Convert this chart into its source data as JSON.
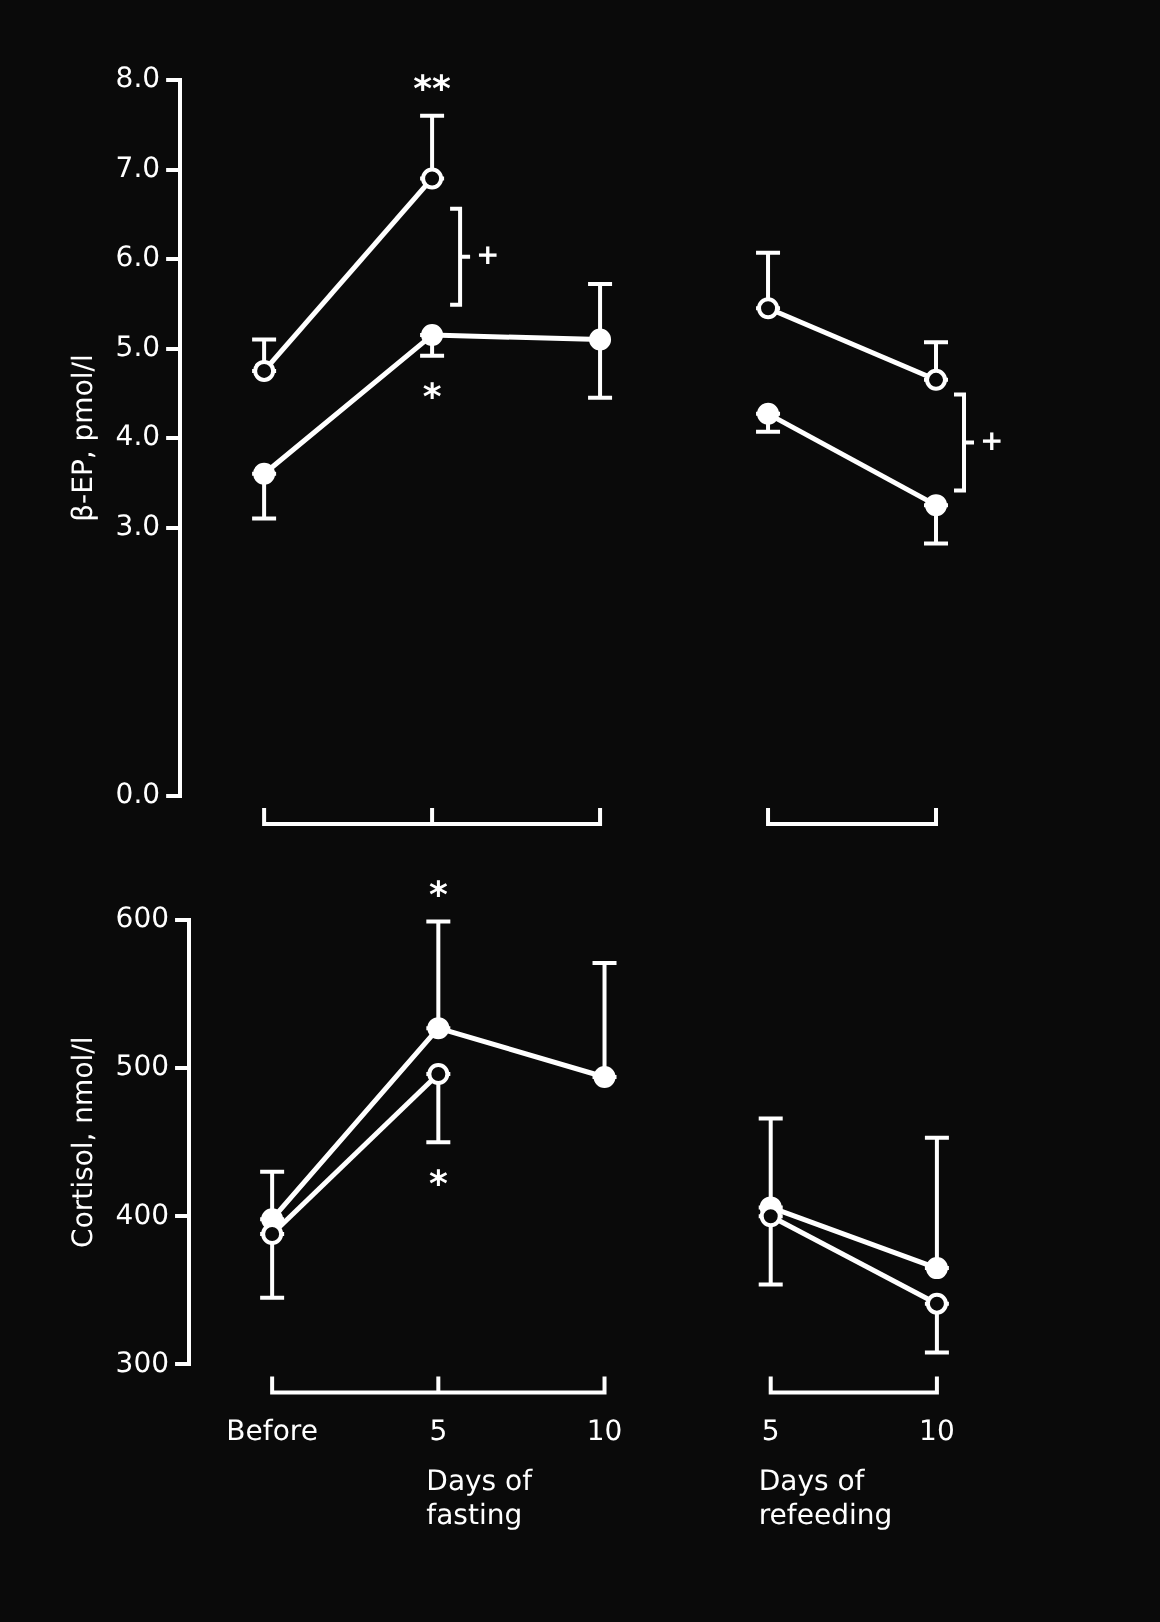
{
  "chart_data": [
    {
      "type": "line",
      "ylabel": "β-EP, pmol/l",
      "categories": [
        null,
        null,
        null,
        null,
        null
      ],
      "ylim": [
        0,
        8
      ],
      "yticks": [
        {
          "value": 0,
          "label": "0.0"
        },
        {
          "value": 3,
          "label": "3.0"
        },
        {
          "value": 4,
          "label": "4.0"
        },
        {
          "value": 5,
          "label": "5.0"
        },
        {
          "value": 6,
          "label": "6.0"
        },
        {
          "value": 7,
          "label": "7.0"
        },
        {
          "value": 8,
          "label": "8.0"
        }
      ],
      "tick_labels": "y",
      "grid": false,
      "legend": false,
      "marker": "circle",
      "series": [
        {
          "color": "#ffffff",
          "values": [
            4.75,
            6.9,
            null,
            null,
            null
          ],
          "errors": [
            [
              4.75,
              5.1
            ],
            [
              6.9,
              7.6
            ],
            null,
            null,
            null
          ]
        },
        {
          "color": "#ffffff",
          "values": [
            3.6,
            5.15,
            5.1,
            null,
            null
          ],
          "errors": [
            [
              3.1,
              3.6
            ],
            [
              4.92,
              5.15
            ],
            [
              4.45,
              5.72
            ],
            null,
            null
          ]
        },
        {
          "color": "#ffffff",
          "values": [
            null,
            null,
            null,
            5.45,
            4.65
          ],
          "errors": [
            null,
            null,
            null,
            [
              5.45,
              6.07
            ],
            [
              4.65,
              5.07
            ]
          ]
        },
        {
          "color": "#ffffff",
          "values": [
            null,
            null,
            null,
            4.27,
            3.25
          ],
          "errors": [
            null,
            null,
            null,
            [
              4.07,
              4.27
            ],
            [
              2.82,
              3.25
            ]
          ]
        }
      ],
      "annotations": [
        "**",
        "+",
        "*",
        "+"
      ]
    },
    {
      "type": "line",
      "ylabel": "Cortisol, nmol/l",
      "categories": [
        "Before",
        "5",
        "10",
        "5",
        "10"
      ],
      "ylim": [
        300,
        600
      ],
      "yticks": [
        300,
        400,
        500,
        600
      ],
      "grid": false,
      "legend": false,
      "marker": "circle",
      "series": [
        {
          "color": "#ffffff",
          "values": [
            388,
            496,
            null,
            null,
            null
          ],
          "errors": [
            [
              345,
              388
            ],
            [
              450,
              496
            ],
            null,
            null,
            null
          ]
        },
        {
          "color": "#ffffff",
          "values": [
            398,
            527,
            494,
            null,
            null
          ],
          "errors": [
            [
              398,
              430
            ],
            [
              527,
              599
            ],
            [
              494,
              571
            ],
            null,
            null
          ]
        },
        {
          "color": "#ffffff",
          "values": [
            null,
            null,
            null,
            400,
            341
          ],
          "errors": [
            null,
            null,
            null,
            [
              354,
              400
            ],
            [
              308,
              341
            ]
          ]
        },
        {
          "color": "#ffffff",
          "values": [
            null,
            null,
            null,
            406,
            365
          ],
          "errors": [
            null,
            null,
            null,
            [
              406,
              466
            ],
            [
              365,
              453
            ]
          ]
        }
      ],
      "annotations": [
        "Days of fasting",
        "Days of refeeding",
        "*",
        "*"
      ]
    }
  ]
}
